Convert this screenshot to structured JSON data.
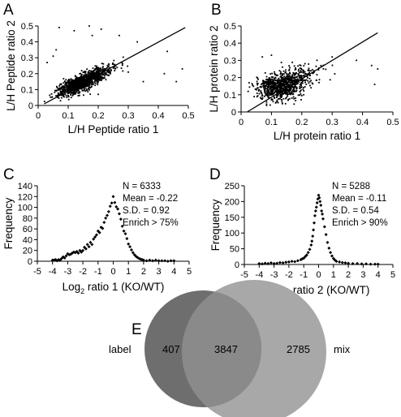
{
  "chart_data": [
    {
      "panel": "A",
      "type": "scatter",
      "xlabel": "L/H Peptide ratio 1",
      "ylabel": "L/H Peptide ratio 2",
      "xlim": [
        0,
        0.5
      ],
      "ylim": [
        0,
        0.5
      ],
      "xticks": [
        "0",
        "0.1",
        "0.2",
        "0.3",
        "0.4",
        "0.5"
      ],
      "yticks": [
        "0",
        "0.1",
        "0.2",
        "0.3",
        "0.4",
        "0.5"
      ],
      "grid": false,
      "reference_line": [
        [
          0.02,
          0.01
        ],
        [
          0.49,
          0.49
        ]
      ],
      "cloud": {
        "center_x": 0.14,
        "center_y": 0.14,
        "spread_major": 0.055,
        "spread_minor": 0.018,
        "count": 1300
      },
      "outliers": [
        [
          0.07,
          0.49
        ],
        [
          0.12,
          0.47
        ],
        [
          0.17,
          0.5
        ],
        [
          0.21,
          0.48
        ],
        [
          0.18,
          0.44
        ],
        [
          0.27,
          0.44
        ],
        [
          0.42,
          0.2
        ],
        [
          0.46,
          0.15
        ],
        [
          0.48,
          0.23
        ],
        [
          0.43,
          0.34
        ],
        [
          0.33,
          0.4
        ],
        [
          0.3,
          0.21
        ],
        [
          0.05,
          0.31
        ],
        [
          0.03,
          0.27
        ],
        [
          0.06,
          0.35
        ],
        [
          0.11,
          0.05
        ],
        [
          0.2,
          0.07
        ],
        [
          0.35,
          0.15
        ]
      ]
    },
    {
      "panel": "B",
      "type": "scatter",
      "xlabel": "L/H protein ratio 1",
      "ylabel": "L/H protein ratio 2",
      "xlim": [
        0,
        0.5
      ],
      "ylim": [
        0,
        0.5
      ],
      "xticks": [
        "0",
        "0.1",
        "0.2",
        "0.3",
        "0.4",
        "0.5"
      ],
      "yticks": [
        "0",
        "0.1",
        "0.2",
        "0.3",
        "0.4",
        "0.5"
      ],
      "grid": false,
      "reference_line": [
        [
          0.02,
          0.0
        ],
        [
          0.45,
          0.46
        ]
      ],
      "cloud": {
        "center_x": 0.13,
        "center_y": 0.15,
        "spread_major": 0.05,
        "spread_minor": 0.035,
        "count": 900
      },
      "outliers": [
        [
          0.44,
          0.16
        ],
        [
          0.45,
          0.25
        ],
        [
          0.43,
          0.27
        ],
        [
          0.38,
          0.3
        ],
        [
          0.3,
          0.32
        ],
        [
          0.25,
          0.3
        ],
        [
          0.07,
          0.32
        ],
        [
          0.1,
          0.33
        ]
      ]
    },
    {
      "panel": "C",
      "type": "scatter",
      "xlabel": "Log2 ratio 1 (KO/WT)",
      "xlabel_parts": {
        "main": "Log",
        "sub": "2",
        "rest": " ratio 1 (KO/WT)"
      },
      "ylabel": "Frequency",
      "xlim": [
        -5,
        5
      ],
      "ylim": [
        0,
        140
      ],
      "xticks": [
        "-5",
        "-4",
        "-3",
        "-2",
        "-1",
        "0",
        "1",
        "2",
        "3",
        "4",
        "5"
      ],
      "yticks": [
        "0",
        "20",
        "40",
        "60",
        "80",
        "100",
        "120",
        "140"
      ],
      "grid": false,
      "stats": [
        "N = 6333",
        "Mean = -0.22",
        "S.D. = 0.92",
        "Enrich > 75%"
      ],
      "x": [
        -4.0,
        -3.9,
        -3.8,
        -3.7,
        -3.6,
        -3.5,
        -3.4,
        -3.3,
        -3.2,
        -3.1,
        -3.0,
        -2.9,
        -2.8,
        -2.7,
        -2.6,
        -2.5,
        -2.4,
        -2.3,
        -2.2,
        -2.1,
        -2.0,
        -1.9,
        -1.8,
        -1.7,
        -1.6,
        -1.5,
        -1.4,
        -1.3,
        -1.2,
        -1.1,
        -1.0,
        -0.9,
        -0.8,
        -0.7,
        -0.6,
        -0.5,
        -0.4,
        -0.3,
        -0.2,
        -0.1,
        0.0,
        0.1,
        0.2,
        0.3,
        0.4,
        0.5,
        0.6,
        0.7,
        0.8,
        0.9,
        1.0,
        1.1,
        1.2,
        1.3,
        1.4,
        1.5,
        1.6,
        1.7,
        1.8,
        1.9,
        2.0,
        2.2,
        2.4,
        2.6,
        2.8,
        3.0,
        3.2,
        3.4,
        3.6,
        3.8,
        4.0
      ],
      "y": [
        2,
        2,
        3,
        1,
        3,
        2,
        5,
        8,
        6,
        10,
        14,
        12,
        13,
        15,
        17,
        16,
        18,
        15,
        20,
        17,
        20,
        26,
        23,
        31,
        27,
        35,
        31,
        41,
        45,
        49,
        56,
        53,
        63,
        61,
        72,
        80,
        85,
        92,
        102,
        108,
        120,
        109,
        101,
        97,
        88,
        78,
        65,
        56,
        51,
        42,
        32,
        27,
        21,
        16,
        12,
        9,
        7,
        5,
        4,
        3,
        2,
        1,
        2,
        1,
        2,
        1,
        1,
        1,
        0,
        1,
        1
      ]
    },
    {
      "panel": "D",
      "type": "scatter",
      "xlabel": "Log2 ratio 2 (KO/WT)",
      "xlabel_parts": {
        "main": "Log",
        "sub": "2",
        "rest": " ratio 2 (KO/WT)"
      },
      "ylabel": "Frequency",
      "xlim": [
        -5,
        5
      ],
      "ylim": [
        0,
        250
      ],
      "xticks": [
        "-5",
        "-4",
        "-3",
        "-2",
        "-1",
        "0",
        "1",
        "2",
        "3",
        "4",
        "5"
      ],
      "yticks": [
        "0",
        "50",
        "100",
        "150",
        "200",
        "250"
      ],
      "grid": false,
      "stats": [
        "N = 5288",
        "Mean = -0.11",
        "S.D. = 0.54",
        "Enrich > 90%"
      ],
      "x": [
        -4.0,
        -3.8,
        -3.6,
        -3.4,
        -3.2,
        -3.0,
        -2.8,
        -2.6,
        -2.4,
        -2.2,
        -2.0,
        -1.8,
        -1.6,
        -1.4,
        -1.2,
        -1.1,
        -1.0,
        -0.9,
        -0.8,
        -0.7,
        -0.6,
        -0.5,
        -0.45,
        -0.4,
        -0.35,
        -0.3,
        -0.25,
        -0.2,
        -0.15,
        -0.1,
        -0.05,
        0.0,
        0.05,
        0.1,
        0.15,
        0.2,
        0.25,
        0.3,
        0.4,
        0.5,
        0.6,
        0.7,
        0.8,
        0.9,
        1.0,
        1.1,
        1.2,
        1.4,
        1.6,
        1.8,
        2.0,
        2.3,
        2.6,
        2.9,
        3.2,
        3.5,
        3.8,
        4.0
      ],
      "y": [
        3,
        2,
        4,
        3,
        5,
        3,
        4,
        6,
        5,
        7,
        8,
        10,
        9,
        12,
        15,
        18,
        20,
        25,
        30,
        38,
        48,
        62,
        74,
        90,
        110,
        132,
        155,
        170,
        182,
        196,
        208,
        220,
        212,
        200,
        188,
        170,
        160,
        145,
        120,
        95,
        70,
        52,
        38,
        27,
        19,
        14,
        10,
        8,
        6,
        5,
        4,
        3,
        3,
        2,
        2,
        1,
        1,
        1
      ]
    },
    {
      "panel": "E",
      "type": "venn",
      "sets": [
        {
          "label": "label",
          "only": 407,
          "color": "#6e6e6e"
        },
        {
          "label": "mix",
          "only": 2785,
          "color": "#a8a8a8"
        }
      ],
      "overlap": 3847,
      "overlap_color": "#8a8a8a"
    }
  ],
  "text": {
    "letter_a": "A",
    "letter_b": "B",
    "letter_c": "C",
    "letter_d": "D",
    "letter_e": "E",
    "venn_label": "label",
    "venn_mix": "mix",
    "venn_only_label": "407",
    "venn_overlap": "3847",
    "venn_only_mix": "2785"
  }
}
